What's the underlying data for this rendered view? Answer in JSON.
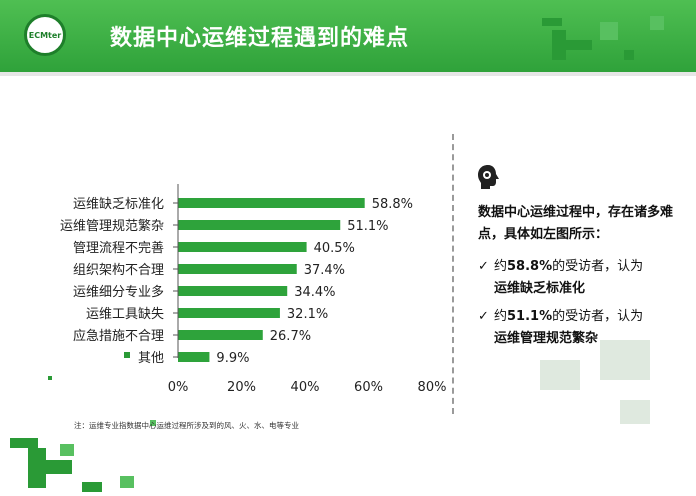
{
  "header": {
    "logo_text": "ECMter",
    "title": "数据中心运维过程遇到的难点",
    "colors": {
      "primary_green": "#3db149",
      "dark_green": "#1e7f2a"
    }
  },
  "chart_data": {
    "type": "bar",
    "orientation": "horizontal",
    "categories": [
      "运维缺乏标准化",
      "运维管理规范繁杂",
      "管理流程不完善",
      "组织架构不合理",
      "运维细分专业多",
      "运维工具缺失",
      "应急措施不合理",
      "其他"
    ],
    "values": [
      58.8,
      51.1,
      40.5,
      37.4,
      34.4,
      32.1,
      26.7,
      9.9
    ],
    "value_labels": [
      "58.8%",
      "51.1%",
      "40.5%",
      "37.4%",
      "34.4%",
      "32.1%",
      "26.7%",
      "9.9%"
    ],
    "x_ticks": [
      0,
      20,
      40,
      60,
      80
    ],
    "x_tick_labels": [
      "0%",
      "20%",
      "40%",
      "60%",
      "80%"
    ],
    "xlim": [
      0,
      80
    ],
    "bar_color": "#2ea33b",
    "grid": false,
    "title": "",
    "xlabel": "",
    "ylabel": ""
  },
  "side": {
    "icon": "head-gear-icon",
    "intro": "数据中心运维过程中，存在诸多难点，具体如左图所示：",
    "points": [
      {
        "check": "✓",
        "pre": "约",
        "pct": "58.8%",
        "mid": "的受访者，认为",
        "item": "运维缺乏标准化"
      },
      {
        "check": "✓",
        "pre": "约",
        "pct": "51.1%",
        "mid": "的受访者，认为",
        "item": "运维管理规范繁杂"
      }
    ]
  },
  "footnote": "注：运维专业指数据中心运维过程所涉及到的风、火、水、电等专业"
}
